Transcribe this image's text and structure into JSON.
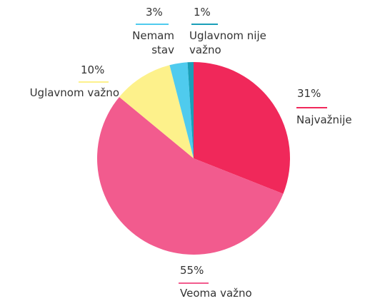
{
  "chart_data": {
    "type": "pie",
    "categories": [
      "Najvažnije",
      "Veoma važno",
      "Uglavnom važno",
      "Nemam stav",
      "Uglavnom nije važno"
    ],
    "values": [
      31,
      55,
      10,
      3,
      1
    ],
    "value_labels": [
      "31%",
      "55%",
      "10%",
      "3%",
      "1%"
    ],
    "colors": [
      "#f0285a",
      "#f25b8e",
      "#fdf18b",
      "#4fcbee",
      "#1a9fb8"
    ]
  }
}
